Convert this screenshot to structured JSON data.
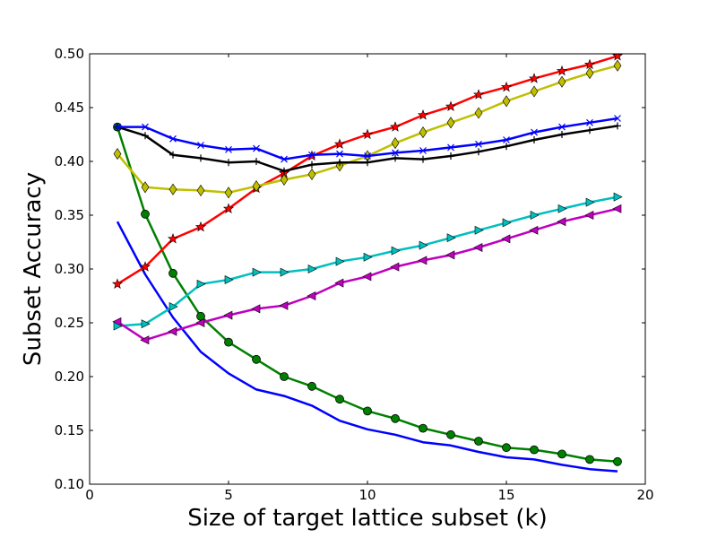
{
  "chart_data": {
    "type": "line",
    "title": "",
    "xlabel": "Size of target lattice subset (k)",
    "ylabel": "Subset Accuracy",
    "xlim": [
      0,
      20
    ],
    "ylim": [
      0.1,
      0.5
    ],
    "xticks": [
      0,
      5,
      10,
      15,
      20
    ],
    "xtick_labels": [
      "0",
      "5",
      "10",
      "15",
      "20"
    ],
    "yticks": [
      0.1,
      0.15,
      0.2,
      0.25,
      0.3,
      0.35,
      0.4,
      0.45,
      0.5
    ],
    "ytick_labels": [
      "0.10",
      "0.15",
      "0.20",
      "0.25",
      "0.30",
      "0.35",
      "0.40",
      "0.45",
      "0.50"
    ],
    "grid": false,
    "legend": "none",
    "x": [
      1,
      2,
      3,
      4,
      5,
      6,
      7,
      8,
      9,
      10,
      11,
      12,
      13,
      14,
      15,
      16,
      17,
      18,
      19
    ],
    "series": [
      {
        "color": "#0000ff",
        "marker": "none",
        "values": [
          0.344,
          0.295,
          0.255,
          0.223,
          0.203,
          0.188,
          0.182,
          0.173,
          0.159,
          0.151,
          0.146,
          0.139,
          0.136,
          0.13,
          0.125,
          0.123,
          0.118,
          0.114,
          0.112
        ]
      },
      {
        "color": "#008000",
        "marker": "circle",
        "values": [
          0.432,
          0.351,
          0.296,
          0.256,
          0.232,
          0.216,
          0.2,
          0.191,
          0.179,
          0.168,
          0.161,
          0.152,
          0.146,
          0.14,
          0.134,
          0.132,
          0.128,
          0.123,
          0.121
        ]
      },
      {
        "color": "#ff0000",
        "marker": "star",
        "values": [
          0.286,
          0.302,
          0.328,
          0.339,
          0.356,
          0.375,
          0.389,
          0.405,
          0.416,
          0.425,
          0.432,
          0.443,
          0.451,
          0.462,
          0.469,
          0.477,
          0.484,
          0.49,
          0.498
        ]
      },
      {
        "color": "#00bfbf",
        "marker": "triangle-right",
        "values": [
          0.247,
          0.249,
          0.265,
          0.286,
          0.29,
          0.297,
          0.297,
          0.3,
          0.307,
          0.311,
          0.317,
          0.322,
          0.329,
          0.336,
          0.343,
          0.35,
          0.356,
          0.362,
          0.367
        ]
      },
      {
        "color": "#bf00bf",
        "marker": "triangle-left",
        "values": [
          0.251,
          0.234,
          0.242,
          0.25,
          0.257,
          0.263,
          0.266,
          0.275,
          0.287,
          0.293,
          0.302,
          0.308,
          0.313,
          0.32,
          0.328,
          0.336,
          0.344,
          0.35,
          0.356
        ]
      },
      {
        "color": "#bfbf00",
        "marker": "diamond",
        "values": [
          0.407,
          0.376,
          0.374,
          0.373,
          0.371,
          0.377,
          0.383,
          0.388,
          0.396,
          0.405,
          0.417,
          0.427,
          0.436,
          0.445,
          0.456,
          0.465,
          0.474,
          0.482,
          0.489
        ]
      },
      {
        "color": "#000000",
        "marker": "plus",
        "values": [
          0.432,
          0.424,
          0.406,
          0.403,
          0.399,
          0.4,
          0.391,
          0.397,
          0.399,
          0.399,
          0.403,
          0.402,
          0.405,
          0.409,
          0.414,
          0.42,
          0.425,
          0.429,
          0.433
        ]
      },
      {
        "color": "#0000ff",
        "marker": "x",
        "values": [
          0.432,
          0.432,
          0.421,
          0.415,
          0.411,
          0.412,
          0.402,
          0.406,
          0.407,
          0.405,
          0.408,
          0.41,
          0.413,
          0.416,
          0.42,
          0.427,
          0.432,
          0.436,
          0.44
        ]
      }
    ]
  }
}
